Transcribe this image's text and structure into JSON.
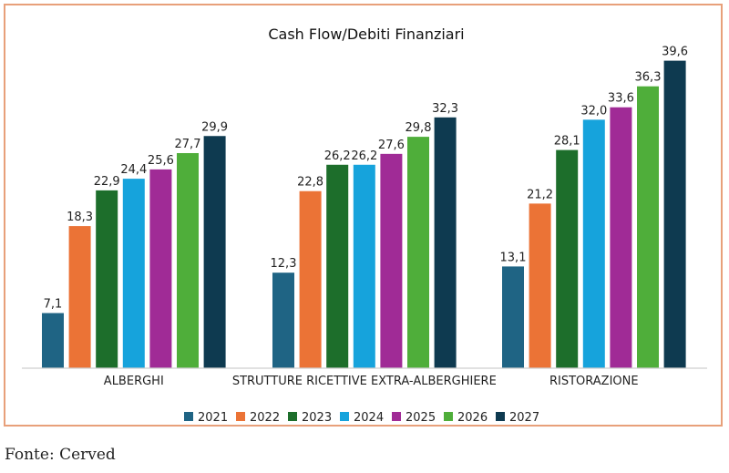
{
  "chart_data": {
    "type": "bar",
    "title": "Cash Flow/Debiti Finanziari",
    "categories": [
      "ALBERGHI",
      "STRUTTURE RICETTIVE EXTRA-ALBERGHIERE",
      "RISTORAZIONE"
    ],
    "series": [
      {
        "name": "2021",
        "color": "#1f6484",
        "values": [
          7.1,
          12.3,
          13.1
        ],
        "labels": [
          "7,1",
          "12,3",
          "13,1"
        ]
      },
      {
        "name": "2022",
        "color": "#eb7336",
        "values": [
          18.3,
          22.8,
          21.2
        ],
        "labels": [
          "18,3",
          "22,8",
          "21,2"
        ]
      },
      {
        "name": "2023",
        "color": "#1d6e2b",
        "values": [
          22.9,
          26.2,
          28.1
        ],
        "labels": [
          "22,9",
          "26,2",
          "28,1"
        ]
      },
      {
        "name": "2024",
        "color": "#16a3dc",
        "values": [
          24.4,
          26.2,
          32.0
        ],
        "labels": [
          "24,4",
          "26,2",
          "32,0"
        ]
      },
      {
        "name": "2025",
        "color": "#a02b96",
        "values": [
          25.6,
          27.6,
          33.6
        ],
        "labels": [
          "25,6",
          "27,6",
          "33,6"
        ]
      },
      {
        "name": "2026",
        "color": "#4fae3a",
        "values": [
          27.7,
          29.8,
          36.3
        ],
        "labels": [
          "27,7",
          "29,8",
          "36,3"
        ]
      },
      {
        "name": "2027",
        "color": "#0e3a50",
        "values": [
          29.9,
          32.3,
          39.6
        ],
        "labels": [
          "29,9",
          "32,3",
          "39,6"
        ]
      }
    ],
    "ylim": [
      0,
      40
    ],
    "grid": false,
    "legend": "bottom",
    "data_labels": true
  },
  "source": "Fonte: Cerved"
}
